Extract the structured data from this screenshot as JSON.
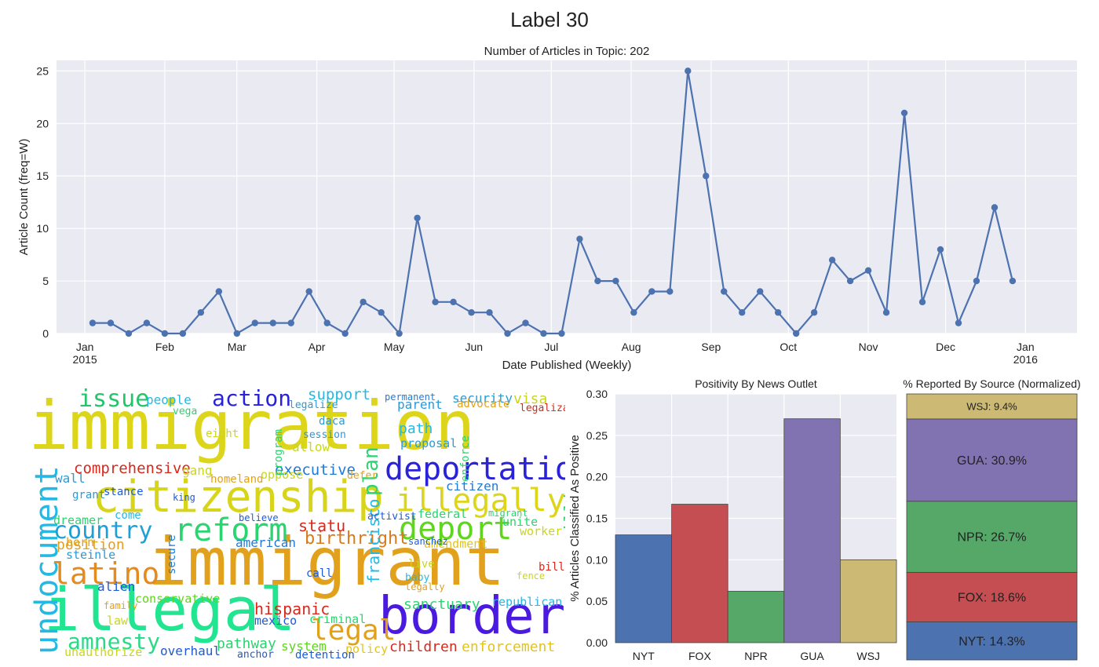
{
  "figure": {
    "title": "Label 30"
  },
  "chart_data": [
    {
      "type": "line",
      "title": "Number of Articles in Topic: 202",
      "xlabel": "Date Published (Weekly)",
      "ylabel": "Article Count (freq=W)",
      "ylim": [
        0,
        26
      ],
      "xlim": [
        "2014-12-21",
        "2016-01-21"
      ],
      "grid": true,
      "x_ticks": [
        {
          "date": "2015-01-01",
          "label": "Jan",
          "sublabel": "2015"
        },
        {
          "date": "2015-02-01",
          "label": "Feb",
          "sublabel": ""
        },
        {
          "date": "2015-03-01",
          "label": "Mar",
          "sublabel": ""
        },
        {
          "date": "2015-04-01",
          "label": "Apr",
          "sublabel": ""
        },
        {
          "date": "2015-05-01",
          "label": "May",
          "sublabel": ""
        },
        {
          "date": "2015-06-01",
          "label": "Jun",
          "sublabel": ""
        },
        {
          "date": "2015-07-01",
          "label": "Jul",
          "sublabel": ""
        },
        {
          "date": "2015-08-01",
          "label": "Aug",
          "sublabel": ""
        },
        {
          "date": "2015-09-01",
          "label": "Sep",
          "sublabel": ""
        },
        {
          "date": "2015-10-01",
          "label": "Oct",
          "sublabel": ""
        },
        {
          "date": "2015-11-01",
          "label": "Nov",
          "sublabel": ""
        },
        {
          "date": "2015-12-01",
          "label": "Dec",
          "sublabel": ""
        },
        {
          "date": "2016-01-01",
          "label": "Jan",
          "sublabel": "2016"
        }
      ],
      "y_ticks": [
        0,
        5,
        10,
        15,
        20,
        25
      ],
      "x": [
        "2015-01-04",
        "2015-01-11",
        "2015-01-18",
        "2015-01-25",
        "2015-02-01",
        "2015-02-08",
        "2015-02-15",
        "2015-02-22",
        "2015-03-01",
        "2015-03-08",
        "2015-03-15",
        "2015-03-22",
        "2015-03-29",
        "2015-04-05",
        "2015-04-12",
        "2015-04-19",
        "2015-04-26",
        "2015-05-03",
        "2015-05-10",
        "2015-05-17",
        "2015-05-24",
        "2015-05-31",
        "2015-06-07",
        "2015-06-14",
        "2015-06-21",
        "2015-06-28",
        "2015-07-05",
        "2015-07-12",
        "2015-07-19",
        "2015-07-26",
        "2015-08-02",
        "2015-08-09",
        "2015-08-16",
        "2015-08-23",
        "2015-08-30",
        "2015-09-06",
        "2015-09-13",
        "2015-09-20",
        "2015-09-27",
        "2015-10-04",
        "2015-10-11",
        "2015-10-18",
        "2015-10-25",
        "2015-11-01",
        "2015-11-08",
        "2015-11-15",
        "2015-11-22",
        "2015-11-29",
        "2015-12-06",
        "2015-12-13",
        "2015-12-20",
        "2015-12-27"
      ],
      "values": [
        1,
        1,
        0,
        1,
        0,
        0,
        2,
        4,
        0,
        1,
        1,
        1,
        4,
        1,
        0,
        3,
        2,
        0,
        11,
        3,
        3,
        2,
        2,
        0,
        1,
        0,
        0,
        9,
        5,
        5,
        2,
        4,
        4,
        25,
        15,
        4,
        2,
        4,
        2,
        0,
        2,
        7,
        5,
        6,
        2,
        21,
        3,
        8,
        1,
        5,
        12,
        5
      ],
      "color": "#4c72b0"
    },
    {
      "type": "bar",
      "title": "Positivity By News Outlet",
      "xlabel": "",
      "ylabel": "% Articles Classified As Positive",
      "categories": [
        "NYT",
        "FOX",
        "NPR",
        "GUA",
        "WSJ"
      ],
      "values": [
        0.13,
        0.167,
        0.062,
        0.27,
        0.1
      ],
      "colors": [
        "#4c72b0",
        "#c44e52",
        "#55a868",
        "#8172b2",
        "#ccb974"
      ],
      "ylim": [
        0,
        0.3
      ],
      "y_ticks": [
        "0.00",
        "0.05",
        "0.10",
        "0.15",
        "0.20",
        "0.25",
        "0.30"
      ],
      "grid": true
    },
    {
      "type": "bar",
      "title": "% Reported By Source (Normalized)",
      "categories": [
        "NYT",
        "FOX",
        "NPR",
        "GUA",
        "WSJ"
      ],
      "values": [
        14.3,
        18.6,
        26.7,
        30.9,
        9.4
      ],
      "labels": [
        "NYT: 14.3%",
        "FOX: 18.6%",
        "NPR: 26.7%",
        "GUA: 30.9%",
        "WSJ: 9.4%"
      ],
      "colors": [
        "#4c72b0",
        "#c44e52",
        "#55a868",
        "#8172b2",
        "#ccb974"
      ]
    }
  ],
  "wordcloud": {
    "words": [
      {
        "text": "immigration",
        "color": "#dcd51a"
      },
      {
        "text": "immigrant",
        "color": "#e1a11c"
      },
      {
        "text": "border",
        "color": "#4b1ae0"
      },
      {
        "text": "illegal",
        "color": "#21e590"
      },
      {
        "text": "citizenship",
        "color": "#d8d41c"
      },
      {
        "text": "deportation",
        "color": "#2a22d8"
      },
      {
        "text": "undocument",
        "color": "#24b8e3"
      },
      {
        "text": "illegally",
        "color": "#dcd51a"
      },
      {
        "text": "reform",
        "color": "#2ad46f"
      },
      {
        "text": "deport",
        "color": "#5ed61c"
      },
      {
        "text": "latino",
        "color": "#e58a1c"
      },
      {
        "text": "country",
        "color": "#1ea0d6"
      },
      {
        "text": "legal",
        "color": "#e1a11c"
      },
      {
        "text": "amnesty",
        "color": "#2bd98a"
      },
      {
        "text": "action",
        "color": "#2a22d8"
      },
      {
        "text": "issue",
        "color": "#23c56a"
      },
      {
        "text": "hispanic",
        "color": "#d8281c"
      },
      {
        "text": "birthright",
        "color": "#d87a1c"
      },
      {
        "text": "francisco",
        "color": "#24b8e3"
      },
      {
        "text": "comprehensive",
        "color": "#d8281c"
      },
      {
        "text": "executive",
        "color": "#1e7ad6"
      },
      {
        "text": "plan",
        "color": "#2ad46f"
      },
      {
        "text": "sanctuary",
        "color": "#2ad46f"
      },
      {
        "text": "enforcement",
        "color": "#e1c51c"
      },
      {
        "text": "children",
        "color": "#d8281c"
      },
      {
        "text": "pathway",
        "color": "#2ad46f"
      },
      {
        "text": "overhaul",
        "color": "#1e5ad6"
      },
      {
        "text": "support",
        "color": "#24b8e3"
      },
      {
        "text": "statu",
        "color": "#d8281c"
      },
      {
        "text": "million",
        "color": "#2ad46f"
      },
      {
        "text": "position",
        "color": "#e1a11c"
      },
      {
        "text": "visa",
        "color": "#c9d61c"
      },
      {
        "text": "security",
        "color": "#2a9ad8"
      },
      {
        "text": "path",
        "color": "#24b8e3"
      },
      {
        "text": "alien",
        "color": "#1e5ad6"
      },
      {
        "text": "conservative",
        "color": "#5ed61c"
      },
      {
        "text": "republican",
        "color": "#24b8e3"
      },
      {
        "text": "amendment",
        "color": "#e1c51c"
      },
      {
        "text": "criminal",
        "color": "#2ad46f"
      },
      {
        "text": "american",
        "color": "#1e7ad6"
      },
      {
        "text": "citizen",
        "color": "#1e7ad6"
      },
      {
        "text": "mexico",
        "color": "#1e5ad6"
      },
      {
        "text": "system",
        "color": "#5ed61c"
      },
      {
        "text": "policy",
        "color": "#e1c51c"
      },
      {
        "text": "unauthorize",
        "color": "#c9d61c"
      },
      {
        "text": "detention",
        "color": "#1e5ad6"
      },
      {
        "text": "federal",
        "color": "#2ad46f"
      },
      {
        "text": "worker",
        "color": "#c9d61c"
      },
      {
        "text": "dreamer",
        "color": "#2ad46f"
      },
      {
        "text": "people",
        "color": "#24b8e3"
      },
      {
        "text": "wall",
        "color": "#2a9ad8"
      },
      {
        "text": "allow",
        "color": "#c9d61c"
      },
      {
        "text": "gang",
        "color": "#c9d61c"
      },
      {
        "text": "parent",
        "color": "#2a9ad8"
      },
      {
        "text": "steinle",
        "color": "#2a9ad8"
      },
      {
        "text": "born",
        "color": "#e1a11c"
      },
      {
        "text": "homeland",
        "color": "#e1a11c"
      },
      {
        "text": "oppose",
        "color": "#c9d61c"
      },
      {
        "text": "stance",
        "color": "#1e5ad6"
      },
      {
        "text": "grant",
        "color": "#2a9ad8"
      },
      {
        "text": "come",
        "color": "#24b8e3"
      },
      {
        "text": "unite",
        "color": "#2ad46f"
      },
      {
        "text": "law",
        "color": "#c9d61c"
      },
      {
        "text": "call",
        "color": "#1e5ad6"
      },
      {
        "text": "proposal",
        "color": "#2a9ad8"
      },
      {
        "text": "program",
        "color": "#2ad46f"
      },
      {
        "text": "secure",
        "color": "#1e7ad6"
      },
      {
        "text": "legalize",
        "color": "#2a9ad8"
      },
      {
        "text": "advocate",
        "color": "#e1a11c"
      },
      {
        "text": "legalization",
        "color": "#d8281c"
      },
      {
        "text": "eight",
        "color": "#c9d61c"
      },
      {
        "text": "enforce",
        "color": "#2ad46f"
      },
      {
        "text": "daca",
        "color": "#2a9ad8"
      },
      {
        "text": "session",
        "color": "#2a9ad8"
      },
      {
        "text": "activist",
        "color": "#1e5ad6"
      },
      {
        "text": "live",
        "color": "#c9d61c"
      },
      {
        "text": "baby",
        "color": "#24b8e3"
      },
      {
        "text": "legally",
        "color": "#e1a11c"
      },
      {
        "text": "sanchez",
        "color": "#1e5ad6"
      },
      {
        "text": "believe",
        "color": "#1e5ad6"
      },
      {
        "text": "fence",
        "color": "#c9d61c"
      },
      {
        "text": "bill",
        "color": "#d8281c"
      },
      {
        "text": "king",
        "color": "#1e5ad6"
      },
      {
        "text": "defer",
        "color": "#e1a11c"
      },
      {
        "text": "permanent",
        "color": "#1e7ad6"
      },
      {
        "text": "family",
        "color": "#e1a11c"
      },
      {
        "text": "vega",
        "color": "#2ad46f"
      },
      {
        "text": "anchor",
        "color": "#1e5ad6"
      },
      {
        "text": "migrant",
        "color": "#2ad46f"
      }
    ]
  }
}
